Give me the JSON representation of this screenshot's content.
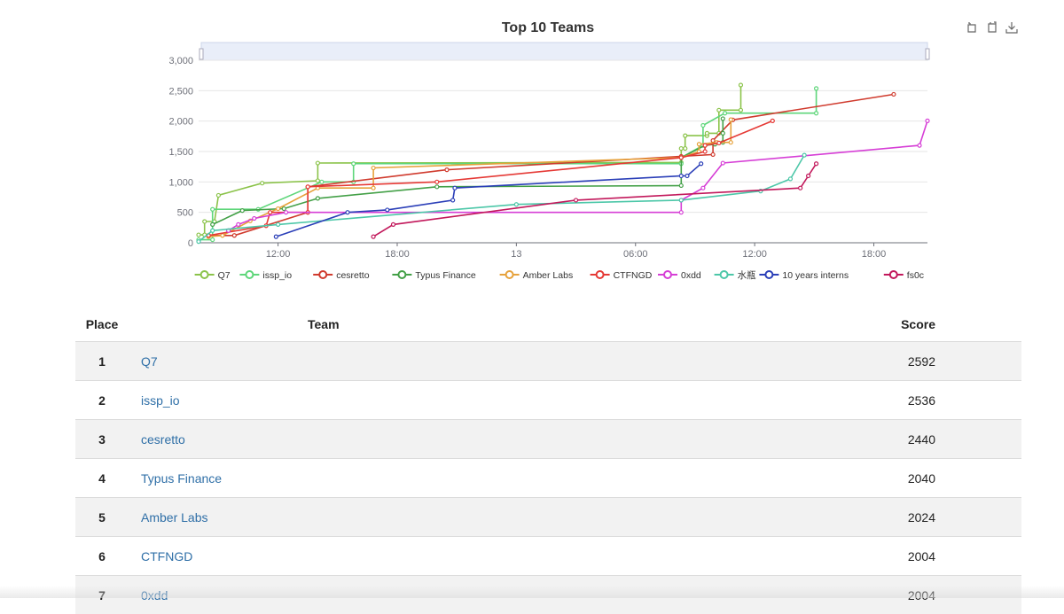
{
  "chart_data": {
    "type": "line",
    "title": "Top 10 Teams",
    "ylim": [
      0,
      3000
    ],
    "yticks": [
      "0",
      "500",
      "1,000",
      "1,500",
      "2,000",
      "2,500",
      "3,000"
    ],
    "xticks": [
      "12:00",
      "18:00",
      "13",
      "06:00",
      "12:00",
      "18:00"
    ],
    "x_unit": "hours since first tick start (08:00 day 1)",
    "grid": true,
    "legend_position": "bottom",
    "series": [
      {
        "name": "Q7",
        "color": "#8bc34a",
        "points": [
          [
            0,
            130
          ],
          [
            0.3,
            130
          ],
          [
            0.3,
            350
          ],
          [
            0.8,
            350
          ],
          [
            1.0,
            780
          ],
          [
            3.2,
            980
          ],
          [
            6.0,
            1020
          ],
          [
            6.0,
            1310
          ],
          [
            24.3,
            1320
          ],
          [
            24.3,
            1550
          ],
          [
            24.5,
            1550
          ],
          [
            24.5,
            1760
          ],
          [
            25.6,
            1760
          ],
          [
            25.6,
            1800
          ],
          [
            26.2,
            1800
          ],
          [
            26.2,
            2180
          ],
          [
            27.3,
            2180
          ],
          [
            27.3,
            2592
          ]
        ]
      },
      {
        "name": "issp_io",
        "color": "#5ed67a",
        "points": [
          [
            0,
            50
          ],
          [
            0.7,
            50
          ],
          [
            0.7,
            550
          ],
          [
            3.0,
            550
          ],
          [
            6.2,
            1000
          ],
          [
            7.8,
            1000
          ],
          [
            7.8,
            1300
          ],
          [
            24.3,
            1300
          ],
          [
            24.3,
            1400
          ],
          [
            25.4,
            1600
          ],
          [
            25.4,
            1930
          ],
          [
            26.5,
            2130
          ],
          [
            31.1,
            2130
          ],
          [
            31.1,
            2536
          ]
        ]
      },
      {
        "name": "cesretto",
        "color": "#d03b2e",
        "points": [
          [
            0.5,
            120
          ],
          [
            1.8,
            120
          ],
          [
            5.5,
            500
          ],
          [
            5.5,
            920
          ],
          [
            12.5,
            1200
          ],
          [
            24.3,
            1420
          ],
          [
            25.9,
            1450
          ],
          [
            25.9,
            1680
          ],
          [
            26.9,
            2020
          ],
          [
            35.0,
            2440
          ]
        ]
      },
      {
        "name": "Typus Finance",
        "color": "#43a047",
        "points": [
          [
            0.7,
            300
          ],
          [
            2.2,
            530
          ],
          [
            4.3,
            560
          ],
          [
            6.0,
            730
          ],
          [
            12.0,
            920
          ],
          [
            24.3,
            940
          ],
          [
            24.3,
            1400
          ],
          [
            25.5,
            1600
          ],
          [
            26.0,
            1620
          ],
          [
            26.4,
            1650
          ],
          [
            26.4,
            1800
          ],
          [
            26.4,
            2040
          ]
        ]
      },
      {
        "name": "Amber Labs",
        "color": "#e6a23c",
        "points": [
          [
            0.5,
            100
          ],
          [
            1.2,
            120
          ],
          [
            2.6,
            360
          ],
          [
            4.0,
            560
          ],
          [
            6.0,
            900
          ],
          [
            8.8,
            900
          ],
          [
            8.8,
            1230
          ],
          [
            24.3,
            1400
          ],
          [
            25.2,
            1500
          ],
          [
            25.2,
            1620
          ],
          [
            26.1,
            1650
          ],
          [
            26.8,
            1650
          ],
          [
            26.8,
            2024
          ]
        ]
      },
      {
        "name": "CTFNGD",
        "color": "#e53935",
        "points": [
          [
            0.5,
            120
          ],
          [
            3.4,
            280
          ],
          [
            3.6,
            500
          ],
          [
            5.5,
            500
          ],
          [
            5.5,
            920
          ],
          [
            12.0,
            1000
          ],
          [
            24.3,
            1400
          ],
          [
            25.5,
            1500
          ],
          [
            25.5,
            1600
          ],
          [
            26.2,
            1640
          ],
          [
            28.9,
            2004
          ]
        ]
      },
      {
        "name": "0xdd",
        "color": "#d63ed6",
        "points": [
          [
            1.5,
            200
          ],
          [
            2.0,
            300
          ],
          [
            2.8,
            400
          ],
          [
            4.4,
            500
          ],
          [
            24.3,
            500
          ],
          [
            24.3,
            700
          ],
          [
            25.4,
            900
          ],
          [
            26.4,
            1310
          ],
          [
            36.3,
            1600
          ],
          [
            36.7,
            2004
          ]
        ]
      },
      {
        "name": "水瓶",
        "color": "#4cc7a8",
        "points": [
          [
            0,
            20
          ],
          [
            0.7,
            200
          ],
          [
            4.0,
            300
          ],
          [
            16.0,
            630
          ],
          [
            24.3,
            700
          ],
          [
            28.3,
            850
          ],
          [
            29.8,
            1050
          ],
          [
            30.5,
            1440
          ]
        ]
      },
      {
        "name": "10 years interns",
        "color": "#2b3fb8",
        "points": [
          [
            3.9,
            100
          ],
          [
            7.5,
            500
          ],
          [
            9.5,
            540
          ],
          [
            12.8,
            700
          ],
          [
            12.9,
            900
          ],
          [
            24.3,
            1100
          ],
          [
            24.6,
            1100
          ],
          [
            25.3,
            1300
          ]
        ]
      },
      {
        "name": "fs0c",
        "color": "#c2185b",
        "points": [
          [
            8.8,
            100
          ],
          [
            9.8,
            300
          ],
          [
            19.0,
            700
          ],
          [
            30.3,
            900
          ],
          [
            30.7,
            1100
          ],
          [
            31.1,
            1300
          ]
        ]
      }
    ]
  },
  "table": {
    "headers": {
      "place": "Place",
      "team": "Team",
      "score": "Score"
    },
    "rows": [
      {
        "place": "1",
        "team": "Q7",
        "score": "2592"
      },
      {
        "place": "2",
        "team": "issp_io",
        "score": "2536"
      },
      {
        "place": "3",
        "team": "cesretto",
        "score": "2440"
      },
      {
        "place": "4",
        "team": "Typus Finance",
        "score": "2040"
      },
      {
        "place": "5",
        "team": "Amber Labs",
        "score": "2024"
      },
      {
        "place": "6",
        "team": "CTFNGD",
        "score": "2004"
      },
      {
        "place": "7",
        "team": "0xdd",
        "score": "2004"
      }
    ]
  },
  "toolbox": {
    "icons": [
      "zoom-area-icon",
      "zoom-reset-icon",
      "download-icon"
    ]
  },
  "colors": {
    "link": "#2f6fa7",
    "row_alt": "#f2f2f2",
    "zoom_slider": "#dfe8f8"
  }
}
